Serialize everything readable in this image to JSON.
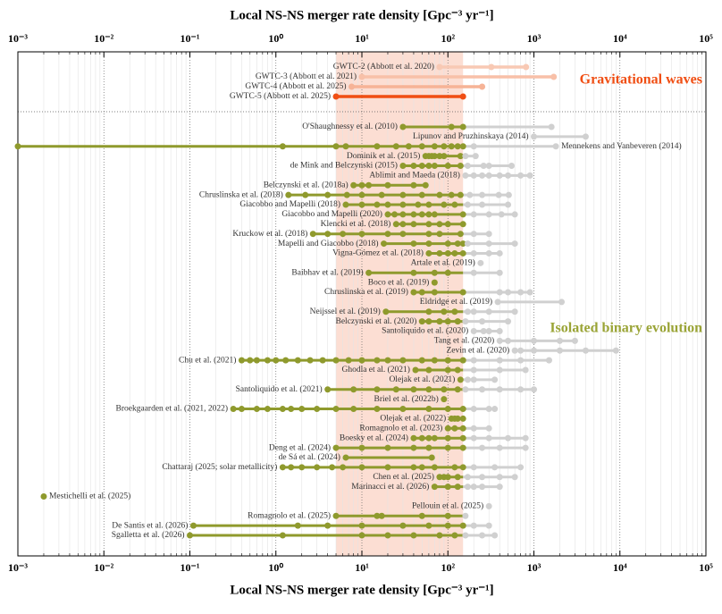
{
  "chart_data": {
    "type": "range_dot",
    "xlabel": "Local NS-NS merger rate density [Gpc⁻³ yr⁻¹]",
    "xlim": [
      0.001,
      100000
    ],
    "log_x": true,
    "xticks": [
      {
        "value": 0.001,
        "label": "10⁻³"
      },
      {
        "value": 0.01,
        "label": "10⁻²"
      },
      {
        "value": 0.1,
        "label": "10⁻¹"
      },
      {
        "value": 1,
        "label": "10⁰"
      },
      {
        "value": 10,
        "label": "10¹"
      },
      {
        "value": 100,
        "label": "10²"
      },
      {
        "value": 1000,
        "label": "10³"
      },
      {
        "value": 10000,
        "label": "10⁴"
      },
      {
        "value": 100000,
        "label": "10⁵"
      }
    ],
    "minor_xticks": [
      0.002,
      0.003,
      0.004,
      0.005,
      0.006,
      0.007,
      0.008,
      0.009,
      0.02,
      0.03,
      0.04,
      0.05,
      0.06,
      0.07,
      0.08,
      0.09,
      0.2,
      0.3,
      0.4,
      0.5,
      0.6,
      0.7,
      0.8,
      0.9,
      2,
      3,
      4,
      5,
      6,
      7,
      8,
      9,
      20,
      30,
      40,
      50,
      60,
      70,
      80,
      90,
      200,
      300,
      400,
      500,
      600,
      700,
      800,
      900,
      2000,
      3000,
      4000,
      5000,
      6000,
      7000,
      8000,
      9000,
      20000,
      30000,
      40000,
      50000,
      60000,
      70000,
      80000,
      90000
    ],
    "grid": true,
    "shaded_range": [
      5,
      150
    ],
    "shade_color": "#fbd3c4",
    "model_color": "#8f9a2d",
    "excess_color": "#d0d0d0",
    "annotations": [
      {
        "text": "Gravitational waves",
        "color": "#f04e13"
      },
      {
        "text": "Isolated binary evolution",
        "color": "#9aa436"
      }
    ],
    "gw_series": [
      {
        "name": "GWTC-2 (Abbott et al. 2020)",
        "color": "#f8c9b4",
        "values": [
          80,
          320,
          810
        ]
      },
      {
        "name": "GWTC-3 (Abbott et al. 2021)",
        "color": "#f8c0a8",
        "values": [
          10,
          1700
        ]
      },
      {
        "name": "GWTC-4 (Abbott et al. 2025)",
        "color": "#f6b396",
        "values": [
          7.6,
          250
        ]
      },
      {
        "name": "GWTC-5 (Abbott et al. 2025)",
        "color": "#f04e13",
        "values": [
          5,
          150
        ]
      }
    ],
    "series": [
      {
        "name": "O'Shaughnessy et al. (2010)",
        "values": [
          30,
          110,
          150,
          1600
        ]
      },
      {
        "name": "Lipunov and Pruzhinskaya (2014)",
        "values": [
          1000,
          4000
        ]
      },
      {
        "name": "Mennekens and Vanbeveren (2014)",
        "values": [
          0.001,
          1.2,
          5,
          6.5,
          15,
          25,
          35,
          50,
          70,
          90,
          110,
          130,
          150,
          200,
          1800
        ]
      },
      {
        "name": "Dominik et al. (2015)",
        "values": [
          55,
          60,
          65,
          70,
          80,
          90,
          140,
          160,
          210
        ]
      },
      {
        "name": "de Mink and Belczynski (2015)",
        "values": [
          30,
          40,
          50,
          60,
          70,
          100,
          140,
          170,
          260,
          300,
          550
        ]
      },
      {
        "name": "Ablimit and Maeda (2018)",
        "values": [
          160,
          200,
          250,
          300,
          400,
          500,
          700,
          900
        ]
      },
      {
        "name": "Belczynski et al. (2018a)",
        "values": [
          8,
          10,
          12,
          20,
          40,
          55
        ]
      },
      {
        "name": "Chruslinska et al. (2018)",
        "values": [
          1.4,
          2.2,
          4,
          6.7,
          10,
          17,
          30,
          50,
          80,
          110,
          140,
          180,
          250,
          390,
          510
        ]
      },
      {
        "name": "Giacobbo and Mapelli (2018)",
        "values": [
          6.5,
          10,
          15,
          20,
          30,
          45,
          60,
          90,
          120,
          170,
          250,
          500
        ]
      },
      {
        "name": "Giacobbo and Mapelli (2020)",
        "values": [
          20,
          24,
          30,
          40,
          50,
          60,
          70,
          150,
          200,
          300,
          420,
          600
        ]
      },
      {
        "name": "Klencki et al. (2018)",
        "values": [
          25,
          30,
          40,
          60,
          80,
          100,
          150
        ]
      },
      {
        "name": "Kruckow et al. (2018)",
        "values": [
          2.7,
          4,
          6,
          10,
          20,
          30,
          60,
          80,
          140,
          200,
          300
        ]
      },
      {
        "name": "Mapelli and Giacobbo (2018)",
        "values": [
          18,
          40,
          60,
          100,
          130,
          150,
          170,
          300,
          600
        ]
      },
      {
        "name": "Vigna-Gómez et al. (2018)",
        "values": [
          60,
          80,
          100,
          120,
          150,
          200,
          300,
          400
        ]
      },
      {
        "name": "Artale et al. (2019)",
        "values": [
          240
        ]
      },
      {
        "name": "Baibhav et al. (2019)",
        "values": [
          12,
          40,
          70,
          100,
          200,
          400
        ]
      },
      {
        "name": "Boco et al. (2019)",
        "values": [
          70
        ]
      },
      {
        "name": "Chruslinska et al. (2019)",
        "values": [
          40,
          50,
          70,
          150,
          400,
          500,
          700,
          900
        ]
      },
      {
        "name": "Eldridge et al. (2019)",
        "values": [
          380,
          2100
        ]
      },
      {
        "name": "Neijssel et al. (2019)",
        "values": [
          19,
          60,
          90,
          120,
          170,
          200,
          300,
          600
        ]
      },
      {
        "name": "Belczynski et al. (2020)",
        "values": [
          50,
          60,
          80,
          100,
          130,
          160,
          250,
          500
        ]
      },
      {
        "name": "Santoliquido et al. (2020)",
        "values": [
          200,
          260,
          300,
          400
        ]
      },
      {
        "name": "Tang et al. (2020)",
        "values": [
          400,
          500,
          1000,
          2000,
          3000
        ]
      },
      {
        "name": "Zevin et al. (2020)",
        "values": [
          600,
          700,
          1000,
          2000,
          4000,
          9000
        ]
      },
      {
        "name": "Chu et al. (2021)",
        "values": [
          0.4,
          0.5,
          0.6,
          0.8,
          1,
          1.3,
          1.8,
          2.5,
          3.5,
          5,
          7,
          10,
          15,
          20,
          30,
          50,
          70,
          100,
          150,
          200,
          400,
          700,
          1500
        ]
      },
      {
        "name": "Ghodla et al. (2021)",
        "values": [
          42,
          60,
          100,
          130,
          200,
          400,
          800
        ]
      },
      {
        "name": "Olejak et al. (2021)",
        "values": [
          140,
          170,
          200,
          350
        ]
      },
      {
        "name": "Santoliquido et al. (2021)",
        "values": [
          4,
          8,
          15,
          25,
          40,
          60,
          90,
          130,
          160,
          250,
          400,
          700,
          1000
        ]
      },
      {
        "name": "Briel et al. (2022b)",
        "values": [
          90
        ]
      },
      {
        "name": "Broekgaarden et al. (2021, 2022)",
        "values": [
          0.32,
          0.4,
          0.6,
          0.8,
          1.2,
          1.5,
          2,
          3,
          5,
          8,
          15,
          30,
          60,
          100,
          150,
          200,
          300,
          350
        ]
      },
      {
        "name": "Olejak et al. (2022)",
        "values": [
          110,
          120,
          130,
          150
        ]
      },
      {
        "name": "Romagnolo et al. (2023)",
        "values": [
          100,
          120,
          150,
          200,
          300
        ]
      },
      {
        "name": "Boesky et al. (2024)",
        "values": [
          40,
          50,
          60,
          70,
          100,
          150,
          200,
          300,
          500,
          800
        ]
      },
      {
        "name": "Deng et al. (2024)",
        "values": [
          5,
          10,
          20,
          40,
          60,
          100,
          150,
          250,
          400,
          800
        ]
      },
      {
        "name": "de Sá et al. (2024)",
        "values": [
          6.5,
          65
        ]
      },
      {
        "name": "Chattaraj (2025; solar metallicity)",
        "values": [
          1.2,
          1.5,
          2,
          3,
          4.5,
          6,
          10,
          20,
          40,
          50,
          70,
          120,
          150,
          200,
          350,
          700
        ]
      },
      {
        "name": "Chen et al. (2025)",
        "values": [
          80,
          90,
          100,
          130,
          170,
          250,
          400,
          600
        ]
      },
      {
        "name": "Marinacci et al. (2026)",
        "values": [
          70,
          100,
          130,
          170,
          200,
          250,
          400
        ]
      },
      {
        "name": "Mestichelli et al. (2025)",
        "values": [
          0.002
        ]
      },
      {
        "name": "Pellouin et al. (2025)",
        "values": [
          300
        ]
      },
      {
        "name": "Romagnolo et al. (2025)",
        "values": [
          5,
          15,
          17,
          50,
          100,
          160
        ]
      },
      {
        "name": "De Santis et al. (2026)",
        "values": [
          0.11,
          1.8,
          4,
          10,
          30,
          60,
          100,
          150,
          200,
          300
        ]
      },
      {
        "name": "Sgalletta et al. (2026)",
        "values": [
          0.1,
          1.2,
          10,
          20,
          40,
          80,
          120,
          160,
          250,
          350
        ]
      }
    ]
  }
}
